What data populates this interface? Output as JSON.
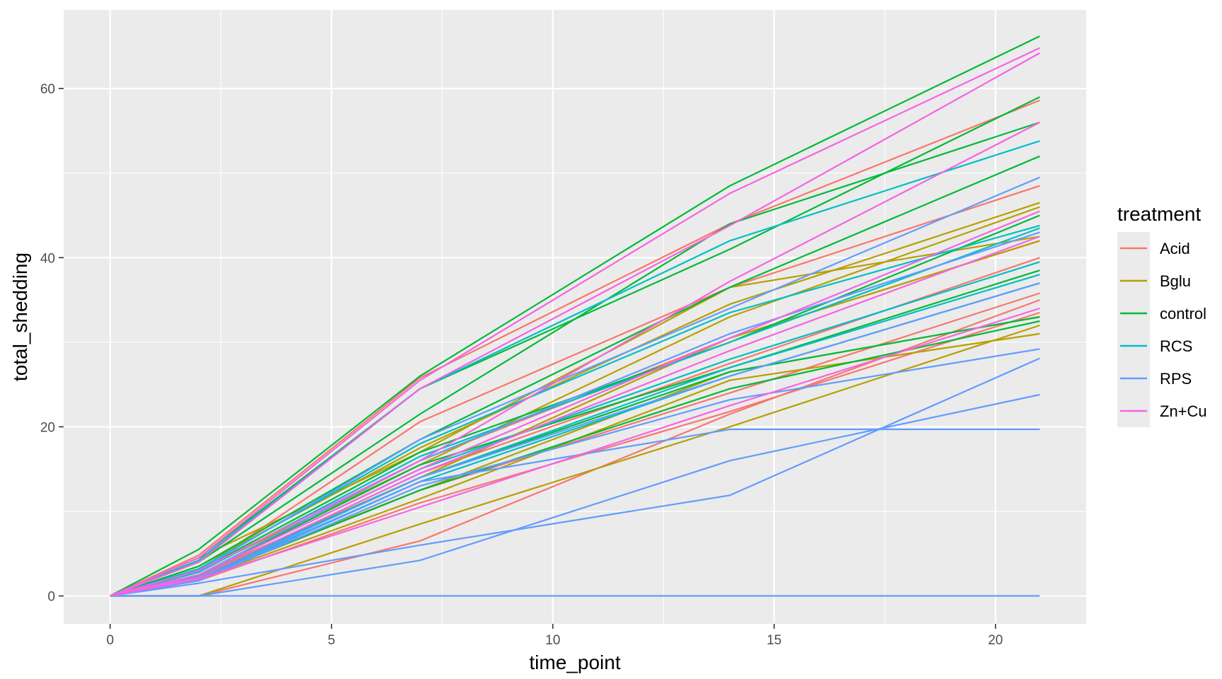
{
  "chart_data": {
    "type": "line",
    "xlabel": "time_point",
    "ylabel": "total_shedding",
    "xlim": [
      -1.05,
      22.05
    ],
    "ylim": [
      -3.3,
      69.3
    ],
    "x_ticks": [
      0,
      5,
      10,
      15,
      20
    ],
    "y_ticks": [
      0,
      20,
      40,
      60
    ],
    "grid": true,
    "legend": {
      "title": "treatment",
      "position": "right",
      "entries": [
        {
          "name": "Acid",
          "color": "#F8766D"
        },
        {
          "name": "Bglu",
          "color": "#B79F00"
        },
        {
          "name": "control",
          "color": "#00BA38"
        },
        {
          "name": "RCS",
          "color": "#00BFC4"
        },
        {
          "name": "RPS",
          "color": "#619CFF"
        },
        {
          "name": "Zn+Cu",
          "color": "#F564E3"
        }
      ]
    },
    "x": [
      0,
      2,
      7,
      14,
      21
    ],
    "series": [
      {
        "group": "Acid",
        "values": [
          0,
          4.8,
          25.8,
          44.0,
          58.6
        ]
      },
      {
        "group": "Acid",
        "values": [
          0,
          3.0,
          20.6,
          36.5,
          48.5
        ]
      },
      {
        "group": "Acid",
        "values": [
          0,
          2.5,
          16.0,
          30.5,
          42.0
        ]
      },
      {
        "group": "Acid",
        "values": [
          0,
          2.2,
          14.5,
          27.5,
          40.0
        ]
      },
      {
        "group": "Acid",
        "values": [
          0,
          2.0,
          12.5,
          24.0,
          35.8
        ]
      },
      {
        "group": "Acid",
        "values": [
          0,
          1.8,
          11.0,
          21.8,
          33.5
        ]
      },
      {
        "group": "Acid",
        "values": [
          0,
          0,
          6.5,
          21.5,
          35.0
        ]
      },
      {
        "group": "Bglu",
        "values": [
          0,
          4.5,
          17.0,
          36.5,
          42.5
        ]
      },
      {
        "group": "Bglu",
        "values": [
          0,
          3.5,
          17.5,
          34.5,
          46.5
        ]
      },
      {
        "group": "Bglu",
        "values": [
          0,
          3.0,
          15.5,
          33.0,
          46.0
        ]
      },
      {
        "group": "Bglu",
        "values": [
          0,
          2.5,
          14.0,
          30.5,
          42.0
        ]
      },
      {
        "group": "Bglu",
        "values": [
          0,
          2.2,
          12.5,
          26.5,
          33.0
        ]
      },
      {
        "group": "Bglu",
        "values": [
          0,
          2.0,
          11.5,
          25.5,
          31.0
        ]
      },
      {
        "group": "Bglu",
        "values": [
          0,
          0,
          8.5,
          20.0,
          32.0
        ]
      },
      {
        "group": "control",
        "values": [
          0,
          5.5,
          26.0,
          48.5,
          66.2
        ]
      },
      {
        "group": "control",
        "values": [
          0,
          4.5,
          24.5,
          41.0,
          59.0
        ]
      },
      {
        "group": "control",
        "values": [
          0,
          4.0,
          21.5,
          44.0,
          56.0
        ]
      },
      {
        "group": "control",
        "values": [
          0,
          3.5,
          18.5,
          36.5,
          52.0
        ]
      },
      {
        "group": "control",
        "values": [
          0,
          3.0,
          17.0,
          30.0,
          45.0
        ]
      },
      {
        "group": "control",
        "values": [
          0,
          2.5,
          15.5,
          27.0,
          38.5
        ]
      },
      {
        "group": "control",
        "values": [
          0,
          2.2,
          14.0,
          26.5,
          33.0
        ]
      },
      {
        "group": "control",
        "values": [
          0,
          2.0,
          12.5,
          24.5,
          32.5
        ]
      },
      {
        "group": "RCS",
        "values": [
          0,
          4.2,
          24.5,
          42.0,
          53.8
        ]
      },
      {
        "group": "RCS",
        "values": [
          0,
          3.2,
          18.0,
          33.5,
          43.8
        ]
      },
      {
        "group": "RCS",
        "values": [
          0,
          2.8,
          16.5,
          30.0,
          43.5
        ]
      },
      {
        "group": "RCS",
        "values": [
          0,
          2.5,
          15.0,
          28.0,
          39.5
        ]
      },
      {
        "group": "RCS",
        "values": [
          0,
          2.3,
          14.0,
          27.0,
          38.0
        ]
      },
      {
        "group": "RCS",
        "values": [
          0,
          2.0,
          13.5,
          26.0,
          37.0
        ]
      },
      {
        "group": "RPS",
        "values": [
          0,
          3.0,
          18.5,
          34.0,
          49.5
        ]
      },
      {
        "group": "RPS",
        "values": [
          0,
          2.5,
          16.0,
          31.0,
          43.0
        ]
      },
      {
        "group": "RPS",
        "values": [
          0,
          2.0,
          14.0,
          26.0,
          37.0
        ]
      },
      {
        "group": "RPS",
        "values": [
          0,
          1.8,
          13.0,
          23.2,
          29.2
        ]
      },
      {
        "group": "RPS",
        "values": [
          0,
          1.8,
          13.5,
          19.7,
          19.7
        ]
      },
      {
        "group": "RPS",
        "values": [
          0,
          1.5,
          6.0,
          11.9,
          28.1
        ]
      },
      {
        "group": "RPS",
        "values": [
          0,
          0,
          4.2,
          16.0,
          23.8
        ]
      },
      {
        "group": "RPS",
        "values": [
          0,
          0,
          0,
          0,
          0
        ]
      },
      {
        "group": "Zn+Cu",
        "values": [
          0,
          4.5,
          25.5,
          47.6,
          64.8
        ]
      },
      {
        "group": "Zn+Cu",
        "values": [
          0,
          4.0,
          24.5,
          43.8,
          64.2
        ]
      },
      {
        "group": "Zn+Cu",
        "values": [
          0,
          3.0,
          16.0,
          37.2,
          56.0
        ]
      },
      {
        "group": "Zn+Cu",
        "values": [
          0,
          2.5,
          15.0,
          30.5,
          45.5
        ]
      },
      {
        "group": "Zn+Cu",
        "values": [
          0,
          2.2,
          14.5,
          29.0,
          42.5
        ]
      },
      {
        "group": "Zn+Cu",
        "values": [
          0,
          2.0,
          10.5,
          22.5,
          34.0
        ]
      }
    ]
  }
}
